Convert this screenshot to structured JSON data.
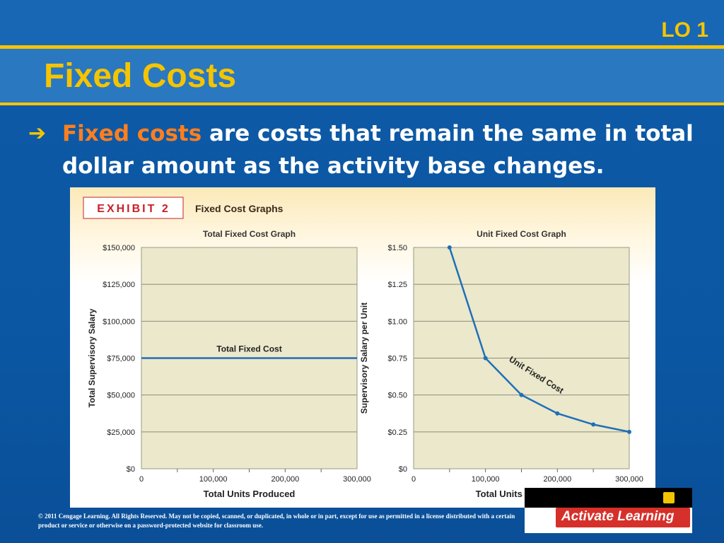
{
  "slide": {
    "lo_label": "LO 1",
    "title": "Fixed Costs",
    "bullet": {
      "highlight": "Fixed costs",
      "rest": " are costs that remain the same in total dollar amount as the activity base changes."
    },
    "footer": "© 2011 Cengage Learning. All Rights Reserved. May not be copied, scanned, or duplicated, in whole or in part, except for use as permitted in a license distributed with a certain product or service or otherwise on a password-protected website for classroom use.",
    "activate_label": "Activate Learning"
  },
  "exhibit": {
    "badge": "EXHIBIT 2",
    "title": "Fixed Cost Graphs"
  },
  "colors": {
    "slide_blue": "#0b57a3",
    "accent_yellow": "#f5c400",
    "highlight_orange": "#ff7f1f",
    "plot_bg": "#ebe8cb",
    "line_blue": "#1f6fb8",
    "badge_red": "#c8202a"
  },
  "chart_data": [
    {
      "type": "line",
      "title": "Total Fixed Cost Graph",
      "xlabel": "Total Units Produced",
      "ylabel": "Total Supervisory Salary",
      "xlim": [
        0,
        300000
      ],
      "ylim": [
        0,
        150000
      ],
      "xticks": [
        0,
        100000,
        200000,
        300000
      ],
      "xtick_labels": [
        "0",
        "100,000",
        "200,000",
        "300,000"
      ],
      "yticks": [
        0,
        25000,
        50000,
        75000,
        100000,
        125000,
        150000
      ],
      "ytick_labels": [
        "$0",
        "$25,000",
        "$50,000",
        "$75,000",
        "$100,000",
        "$125,000",
        "$150,000"
      ],
      "grid": true,
      "series": [
        {
          "name": "Total Fixed Cost",
          "x": [
            0,
            300000
          ],
          "y": [
            75000,
            75000
          ],
          "markers": false
        }
      ]
    },
    {
      "type": "line",
      "title": "Unit Fixed Cost Graph",
      "xlabel": "Total Units Produced",
      "ylabel": "Supervisory Salary per Unit",
      "xlim": [
        0,
        300000
      ],
      "ylim": [
        0,
        1.5
      ],
      "xticks": [
        0,
        100000,
        200000,
        300000
      ],
      "xtick_labels": [
        "0",
        "100,000",
        "200,000",
        "300,000"
      ],
      "yticks": [
        0,
        0.25,
        0.5,
        0.75,
        1.0,
        1.25,
        1.5
      ],
      "ytick_labels": [
        "$0",
        "$0.25",
        "$0.50",
        "$0.75",
        "$1.00",
        "$1.25",
        "$1.50"
      ],
      "grid": true,
      "series": [
        {
          "name": "Unit Fixed Cost",
          "x": [
            50000,
            100000,
            150000,
            200000,
            250000,
            300000
          ],
          "y": [
            1.5,
            0.75,
            0.5,
            0.375,
            0.3,
            0.25
          ],
          "markers": true
        }
      ]
    }
  ]
}
